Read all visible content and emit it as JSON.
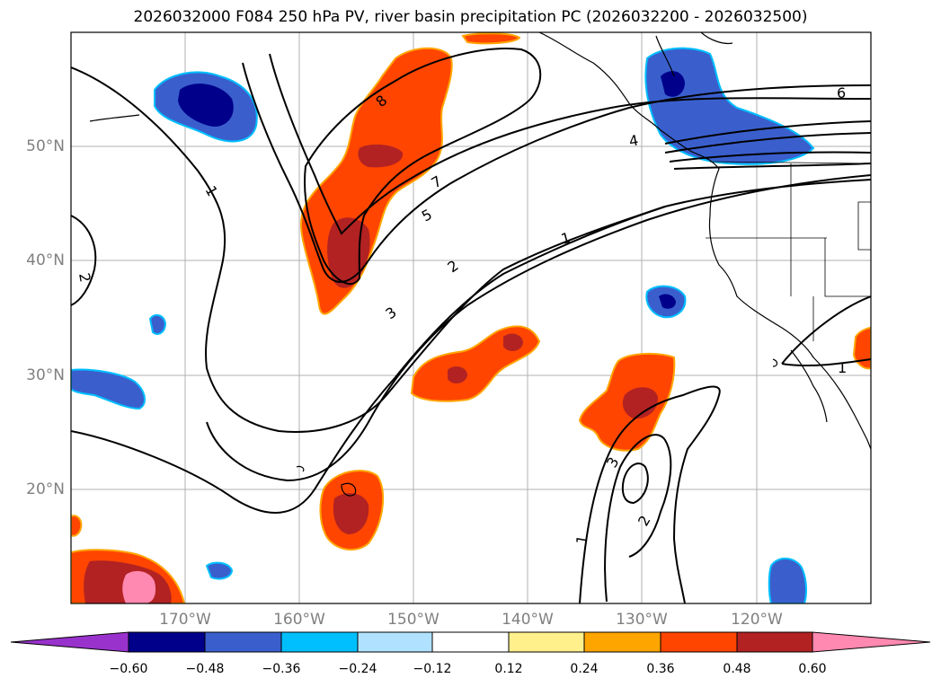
{
  "title": "2026032000 F084 250 hPa PV, river basin precipitation PC (2026032200 - 2026032500)",
  "map": {
    "lat_labels": [
      "50°N",
      "40°N",
      "30°N",
      "20°N"
    ],
    "lon_labels": [
      "170°W",
      "160°W",
      "150°W",
      "140°W",
      "130°W",
      "120°W"
    ],
    "contour_labels": [
      "8",
      "7",
      "6",
      "5",
      "4",
      "3",
      "3",
      "2",
      "2",
      "2",
      "1",
      "1",
      "1",
      "1"
    ]
  },
  "colorbar": {
    "ticks": [
      "−0.60",
      "−0.48",
      "−0.36",
      "−0.24",
      "−0.12",
      "0.12",
      "0.24",
      "0.36",
      "0.48",
      "0.60"
    ],
    "colors": [
      "#9932cc",
      "#00008b",
      "#3a5fcd",
      "#00bfff",
      "#b0e2ff",
      "#ffffff",
      "#fff08c",
      "#ffa500",
      "#ff4500",
      "#b22222",
      "#ff89b0"
    ]
  }
}
